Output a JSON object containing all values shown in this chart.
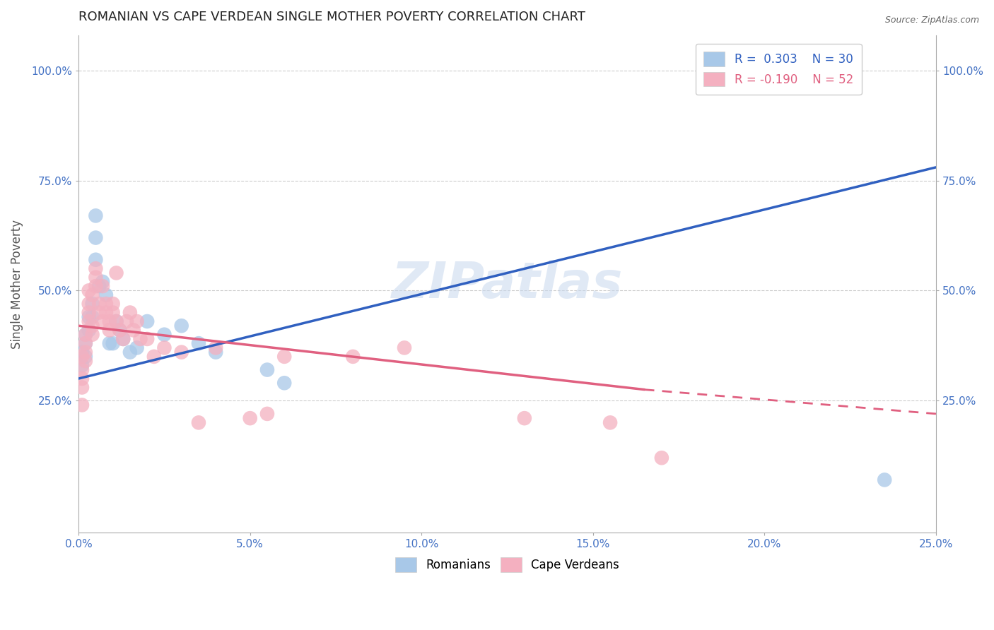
{
  "title": "ROMANIAN VS CAPE VERDEAN SINGLE MOTHER POVERTY CORRELATION CHART",
  "source": "Source: ZipAtlas.com",
  "ylabel": "Single Mother Poverty",
  "xlabel": "",
  "xlim": [
    0.0,
    0.25
  ],
  "ylim": [
    -0.05,
    1.08
  ],
  "y_ticks": [
    0.25,
    0.5,
    0.75,
    1.0
  ],
  "y_tick_labels": [
    "25.0%",
    "50.0%",
    "75.0%",
    "100.0%"
  ],
  "x_ticks": [
    0.0,
    0.05,
    0.1,
    0.15,
    0.2,
    0.25
  ],
  "x_tick_labels": [
    "0.0%",
    "5.0%",
    "10.0%",
    "15.0%",
    "20.0%",
    "25.0%"
  ],
  "romanian_color": "#a8c8e8",
  "cape_verdean_color": "#f4b0c0",
  "romanian_line_color": "#3060c0",
  "cape_verdean_line_color": "#e06080",
  "R_romanian": 0.303,
  "N_romanian": 30,
  "R_cape_verdean": -0.19,
  "N_cape_verdean": 52,
  "watermark_text": "ZIPatlas",
  "romanian_x": [
    0.001,
    0.001,
    0.002,
    0.002,
    0.002,
    0.003,
    0.003,
    0.004,
    0.004,
    0.005,
    0.005,
    0.005,
    0.006,
    0.007,
    0.008,
    0.009,
    0.01,
    0.011,
    0.012,
    0.013,
    0.015,
    0.017,
    0.02,
    0.025,
    0.03,
    0.035,
    0.04,
    0.055,
    0.06,
    0.235
  ],
  "romanian_y": [
    0.36,
    0.33,
    0.4,
    0.38,
    0.35,
    0.44,
    0.41,
    0.47,
    0.44,
    0.57,
    0.62,
    0.67,
    0.51,
    0.52,
    0.49,
    0.38,
    0.38,
    0.43,
    0.41,
    0.39,
    0.36,
    0.37,
    0.43,
    0.4,
    0.42,
    0.38,
    0.36,
    0.32,
    0.29,
    0.07
  ],
  "cape_verdean_x": [
    0.001,
    0.001,
    0.001,
    0.001,
    0.001,
    0.002,
    0.002,
    0.002,
    0.002,
    0.003,
    0.003,
    0.003,
    0.003,
    0.004,
    0.004,
    0.004,
    0.005,
    0.005,
    0.005,
    0.006,
    0.006,
    0.007,
    0.007,
    0.008,
    0.008,
    0.009,
    0.009,
    0.01,
    0.01,
    0.011,
    0.011,
    0.012,
    0.013,
    0.014,
    0.015,
    0.016,
    0.017,
    0.018,
    0.02,
    0.022,
    0.025,
    0.03,
    0.035,
    0.04,
    0.05,
    0.055,
    0.06,
    0.08,
    0.095,
    0.13,
    0.155,
    0.17
  ],
  "cape_verdean_y": [
    0.35,
    0.32,
    0.3,
    0.28,
    0.24,
    0.34,
    0.36,
    0.38,
    0.4,
    0.43,
    0.45,
    0.47,
    0.5,
    0.4,
    0.42,
    0.49,
    0.51,
    0.53,
    0.55,
    0.45,
    0.47,
    0.51,
    0.43,
    0.45,
    0.47,
    0.43,
    0.41,
    0.45,
    0.47,
    0.43,
    0.54,
    0.41,
    0.39,
    0.43,
    0.45,
    0.41,
    0.43,
    0.39,
    0.39,
    0.35,
    0.37,
    0.36,
    0.2,
    0.37,
    0.21,
    0.22,
    0.35,
    0.35,
    0.37,
    0.21,
    0.2,
    0.12
  ],
  "rom_line_x0": 0.0,
  "rom_line_x1": 0.25,
  "rom_line_y0": 0.3,
  "rom_line_y1": 0.78,
  "cv_line_x0": 0.0,
  "cv_line_x1": 0.165,
  "cv_line_x1_dash": 0.25,
  "cv_line_y0": 0.42,
  "cv_line_y1": 0.275,
  "cv_line_y1_dash": 0.22
}
